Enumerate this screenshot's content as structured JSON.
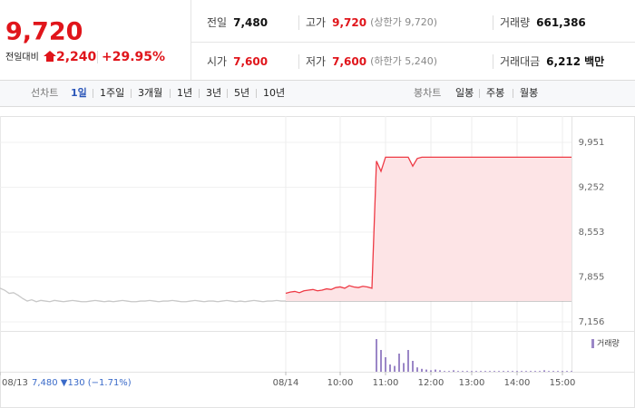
{
  "header": {
    "price": "9,720",
    "change_label": "전일대비",
    "change": "2,240",
    "change_pct": "+29.95%",
    "stats": [
      {
        "label": "전일",
        "value": "7,480"
      },
      {
        "label": "고가",
        "value": "9,720",
        "note": "(상한가 9,720)"
      },
      {
        "label": "거래량",
        "value": "661,386"
      },
      {
        "label": "시가",
        "value": "7,600"
      },
      {
        "label": "저가",
        "value": "7,600",
        "note": "(하한가 5,240)"
      },
      {
        "label": "거래대금",
        "value": "6,212",
        "unit": "백만"
      }
    ]
  },
  "tabs": {
    "line_label": "선차트",
    "line_periods": [
      "1일",
      "1주일",
      "3개월",
      "1년",
      "3년",
      "5년",
      "10년"
    ],
    "candle_label": "봉차트",
    "candle_periods": [
      "일봉",
      "주봉",
      "월봉"
    ]
  },
  "chart_data": {
    "type": "line",
    "categories": [
      "08/13",
      null,
      null,
      null,
      null,
      null,
      null,
      null,
      null,
      null,
      null,
      null,
      null,
      null,
      null,
      null,
      null,
      null,
      null,
      null,
      null,
      null,
      null,
      null,
      null,
      null,
      null,
      null,
      null,
      null,
      null,
      null,
      null,
      null,
      null,
      null,
      null,
      null,
      null,
      null,
      null,
      null,
      null,
      null,
      null,
      null,
      null,
      null,
      null,
      null,
      null,
      null,
      null,
      null,
      null,
      null,
      null,
      null,
      null,
      null,
      null,
      null,
      null,
      "08/14",
      null,
      null,
      null,
      null,
      null,
      null,
      null,
      null,
      null,
      null,
      null,
      "10:00",
      null,
      null,
      null,
      null,
      null,
      null,
      null,
      null,
      null,
      "11:00",
      null,
      null,
      null,
      null,
      null,
      null,
      null,
      null,
      null,
      "12:00",
      null,
      null,
      null,
      null,
      null,
      null,
      null,
      null,
      "13:00",
      null,
      null,
      null,
      null,
      null,
      null,
      null,
      null,
      null,
      "14:00",
      null,
      null,
      null,
      null,
      null,
      null,
      null,
      null,
      null,
      "15:00",
      null,
      null
    ],
    "prev_day_label": "7,480 ▼130 (−1.71%)",
    "baseline": 7480,
    "series": [
      {
        "color": "#c8c8c8",
        "values": [
          7680,
          7650,
          7600,
          7610,
          7570,
          7520,
          7480,
          7500,
          7470,
          7490,
          7480,
          7470,
          7490,
          7480,
          7470,
          7480,
          7490,
          7480,
          7470,
          7470,
          7480,
          7490,
          7480,
          7470,
          7480,
          7470,
          7480,
          7490,
          7480,
          7470,
          7470,
          7480,
          7480,
          7490,
          7480,
          7470,
          7480,
          7480,
          7490,
          7480,
          7470,
          7470,
          7480,
          7490,
          7480,
          7470,
          7480,
          7480,
          7470,
          7480,
          7490,
          7480,
          7470,
          7480,
          7470,
          7480,
          7490,
          7480,
          7470,
          7480,
          7480,
          7490,
          7480,
          7480,
          null,
          null,
          null,
          null,
          null,
          null,
          null,
          null,
          null,
          null,
          null,
          null,
          null,
          null,
          null,
          null,
          null,
          null,
          null,
          null,
          null,
          null,
          null,
          null,
          null,
          null,
          null,
          null,
          null,
          null,
          null,
          null,
          null,
          null,
          null,
          null,
          null,
          null,
          null,
          null,
          null,
          null,
          null,
          null,
          null,
          null,
          null,
          null,
          null,
          null,
          null,
          null,
          null,
          null,
          null,
          null,
          null,
          null,
          null,
          null,
          null,
          null,
          null
        ]
      },
      {
        "color": "#ee3a45",
        "area_color": "#fde4e6",
        "values": [
          null,
          null,
          null,
          null,
          null,
          null,
          null,
          null,
          null,
          null,
          null,
          null,
          null,
          null,
          null,
          null,
          null,
          null,
          null,
          null,
          null,
          null,
          null,
          null,
          null,
          null,
          null,
          null,
          null,
          null,
          null,
          null,
          null,
          null,
          null,
          null,
          null,
          null,
          null,
          null,
          null,
          null,
          null,
          null,
          null,
          null,
          null,
          null,
          null,
          null,
          null,
          null,
          null,
          null,
          null,
          null,
          null,
          null,
          null,
          null,
          null,
          null,
          null,
          7600,
          7620,
          7630,
          7610,
          7640,
          7650,
          7660,
          7640,
          7650,
          7670,
          7660,
          7690,
          7700,
          7680,
          7720,
          7700,
          7690,
          7710,
          7700,
          7680,
          9660,
          9500,
          9720,
          9720,
          9720,
          9720,
          9720,
          9720,
          9580,
          9700,
          9720,
          9720,
          9720,
          9720,
          9720,
          9720,
          9720,
          9720,
          9720,
          9720,
          9720,
          9720,
          9720,
          9720,
          9720,
          9720,
          9720,
          9720,
          9720,
          9720,
          9720,
          9720,
          9720,
          9720,
          9720,
          9720,
          9720,
          9720,
          9720,
          9720,
          9720,
          9720,
          9720,
          9720
        ]
      },
      {
        "name": "거래량",
        "type": "bar",
        "axis": "y2",
        "color": "#9b87c7",
        "values": [
          null,
          null,
          null,
          null,
          null,
          null,
          null,
          null,
          null,
          null,
          null,
          null,
          null,
          null,
          null,
          null,
          null,
          null,
          null,
          null,
          null,
          null,
          null,
          null,
          null,
          null,
          null,
          null,
          null,
          null,
          null,
          null,
          null,
          null,
          null,
          null,
          null,
          null,
          null,
          null,
          null,
          null,
          null,
          null,
          null,
          null,
          null,
          null,
          null,
          null,
          null,
          null,
          null,
          null,
          null,
          null,
          null,
          null,
          null,
          null,
          null,
          null,
          null,
          null,
          null,
          null,
          null,
          null,
          null,
          null,
          null,
          null,
          null,
          null,
          null,
          null,
          null,
          null,
          null,
          null,
          null,
          null,
          null,
          45,
          30,
          20,
          10,
          8,
          25,
          12,
          30,
          15,
          6,
          4,
          3,
          2,
          3,
          2,
          1,
          1,
          2,
          1,
          1,
          1,
          1,
          1,
          1,
          1,
          1,
          1,
          1,
          1,
          1,
          1,
          1,
          1,
          1,
          1,
          1,
          1,
          2,
          1,
          1,
          1,
          1,
          1,
          1
        ]
      }
    ],
    "ylim": [
      7015,
      10360
    ],
    "yticks": [
      {
        "value": 7156,
        "label": "7,156"
      },
      {
        "value": 7855,
        "label": "7,855"
      },
      {
        "value": 8553,
        "label": "8,553"
      },
      {
        "value": 9252,
        "label": "9,252"
      },
      {
        "value": 9951,
        "label": "9,951"
      }
    ],
    "y2lim": [
      0,
      50
    ],
    "grid": true
  }
}
